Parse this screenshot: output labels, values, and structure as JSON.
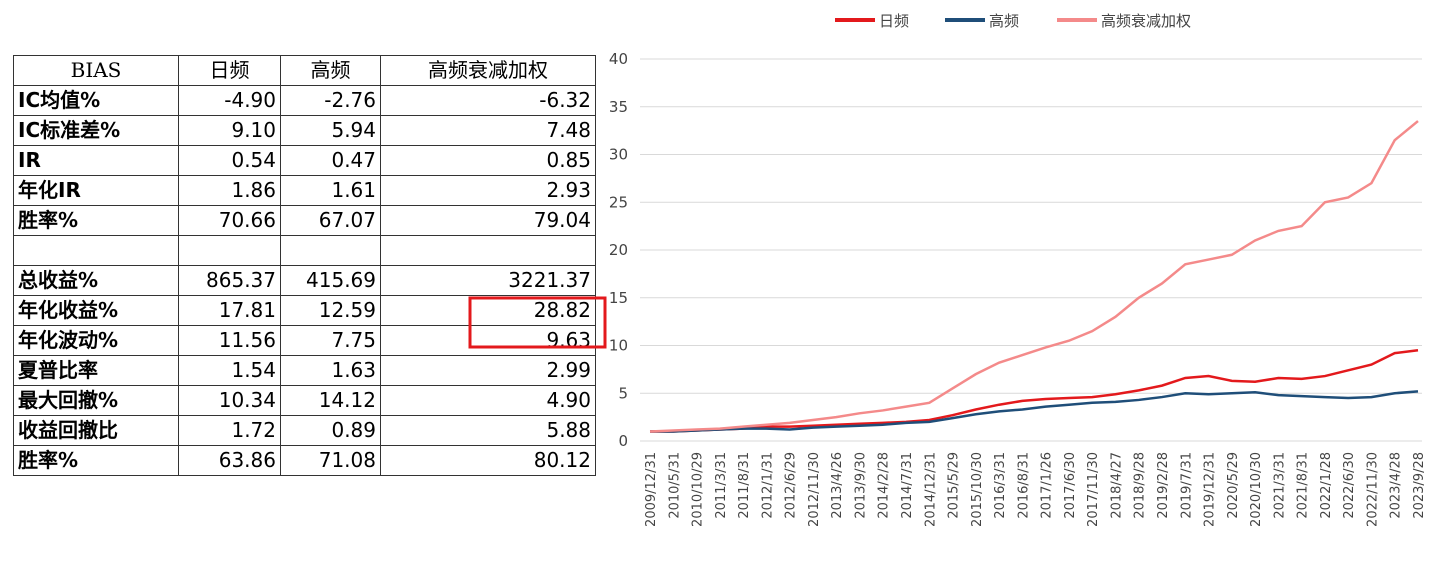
{
  "table": {
    "header": [
      "BIAS",
      "日频",
      "高频",
      "高频衰减加权"
    ],
    "rows1": [
      [
        "IC均值%",
        "-4.90",
        "-2.76",
        "-6.32"
      ],
      [
        "IC标准差%",
        "9.10",
        "5.94",
        "7.48"
      ],
      [
        "IR",
        "0.54",
        "0.47",
        "0.85"
      ],
      [
        "年化IR",
        "1.86",
        "1.61",
        "2.93"
      ],
      [
        "胜率%",
        "70.66",
        "67.07",
        "79.04"
      ]
    ],
    "rows2": [
      [
        "总收益%",
        "865.37",
        "415.69",
        "3221.37"
      ],
      [
        "年化收益%",
        "17.81",
        "12.59",
        "28.82"
      ],
      [
        "年化波动%",
        "11.56",
        "7.75",
        "9.63"
      ],
      [
        "夏普比率",
        "1.54",
        "1.63",
        "2.99"
      ],
      [
        "最大回撤%",
        "10.34",
        "14.12",
        "4.90"
      ],
      [
        "收益回撤比",
        "1.72",
        "0.89",
        "5.88"
      ],
      [
        "胜率%",
        "63.86",
        "71.08",
        "80.12"
      ]
    ]
  },
  "chart_data": {
    "type": "line",
    "legend": "top",
    "grid": true,
    "categories": [
      "2009/12/31",
      "2010/5/31",
      "2010/10/29",
      "2011/3/31",
      "2011/8/31",
      "2012/1/31",
      "2012/6/29",
      "2012/11/30",
      "2013/4/26",
      "2013/9/30",
      "2014/2/28",
      "2014/7/31",
      "2014/12/31",
      "2015/5/29",
      "2015/10/30",
      "2016/3/31",
      "2016/8/31",
      "2017/1/26",
      "2017/6/30",
      "2017/11/30",
      "2018/4/27",
      "2018/9/28",
      "2019/2/28",
      "2019/7/31",
      "2019/12/31",
      "2020/5/29",
      "2020/10/30",
      "2021/3/31",
      "2021/8/31",
      "2022/1/28",
      "2022/6/30",
      "2022/11/30",
      "2023/4/28",
      "2023/9/28"
    ],
    "series": [
      {
        "name": "日频",
        "color": "#e3191c",
        "values": [
          1.0,
          1.0,
          1.1,
          1.2,
          1.3,
          1.5,
          1.5,
          1.6,
          1.7,
          1.8,
          1.9,
          2.0,
          2.2,
          2.7,
          3.3,
          3.8,
          4.2,
          4.4,
          4.5,
          4.6,
          4.9,
          5.3,
          5.8,
          6.6,
          6.8,
          6.3,
          6.2,
          6.6,
          6.5,
          6.8,
          7.4,
          8.0,
          9.2,
          9.5
        ]
      },
      {
        "name": "高频",
        "color": "#1f4e79",
        "values": [
          1.0,
          1.0,
          1.1,
          1.2,
          1.3,
          1.3,
          1.2,
          1.4,
          1.5,
          1.6,
          1.7,
          1.9,
          2.0,
          2.4,
          2.8,
          3.1,
          3.3,
          3.6,
          3.8,
          4.0,
          4.1,
          4.3,
          4.6,
          5.0,
          4.9,
          5.0,
          5.1,
          4.8,
          4.7,
          4.6,
          4.5,
          4.6,
          5.0,
          5.2
        ]
      },
      {
        "name": "高频衰减加权",
        "color": "#f48a8a",
        "values": [
          1.0,
          1.1,
          1.2,
          1.3,
          1.5,
          1.7,
          1.9,
          2.2,
          2.5,
          2.9,
          3.2,
          3.6,
          4.0,
          5.5,
          7.0,
          8.2,
          9.0,
          9.8,
          10.5,
          11.5,
          13.0,
          15.0,
          16.5,
          18.5,
          19.0,
          19.5,
          21.0,
          22.0,
          22.5,
          25.0,
          25.5,
          27.0,
          31.5,
          33.5
        ]
      }
    ],
    "ylim": [
      0,
      40
    ],
    "yticks": [
      0,
      5,
      10,
      15,
      20,
      25,
      30,
      35,
      40
    ]
  }
}
